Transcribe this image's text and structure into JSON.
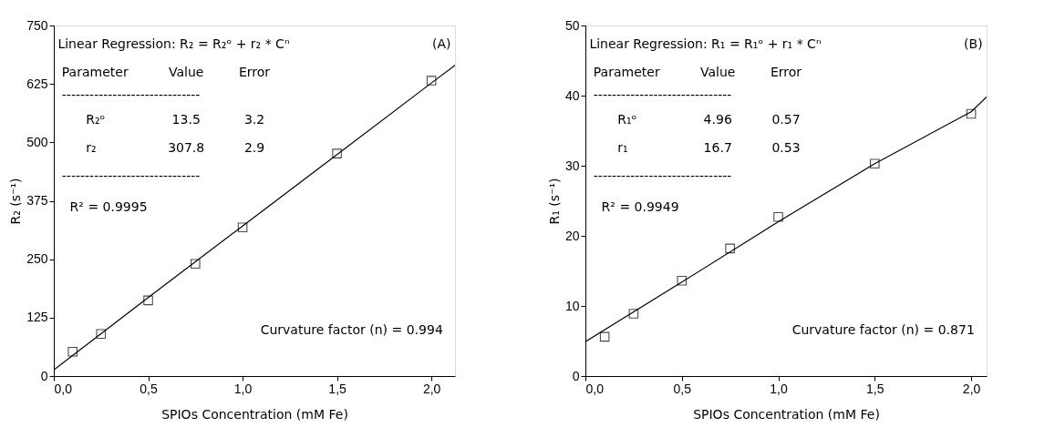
{
  "chart_data": [
    {
      "type": "scatter",
      "xlabel": "SPIOs Concentration (mM Fe)",
      "ylabel": "R₂ (s⁻¹)",
      "xlim": [
        0,
        2.125
      ],
      "xticks": [
        {
          "value": 0,
          "label": "0,0"
        },
        {
          "value": 0.5,
          "label": "0,5"
        },
        {
          "value": 1,
          "label": "1,0"
        },
        {
          "value": 1.5,
          "label": "1,5"
        },
        {
          "value": 2,
          "label": "2,0"
        }
      ],
      "ylim": [
        0,
        750
      ],
      "yticks": [
        0,
        125,
        250,
        375,
        500,
        625,
        750
      ],
      "grid": false,
      "series": [
        {
          "marker": "square",
          "color": "#000000",
          "x": [
            0.1,
            0.25,
            0.5,
            0.75,
            1.0,
            1.5,
            2.0
          ],
          "values": [
            52,
            90,
            162,
            240,
            318,
            476,
            632
          ]
        },
        {
          "type": "line",
          "marker": "none",
          "line_style": "solid",
          "color": "#000000",
          "x": [
            0,
            0.5,
            1.0,
            1.5,
            2.0,
            2.125
          ],
          "values": [
            13,
            168,
            321,
            474,
            627,
            665
          ]
        }
      ],
      "annotations": [
        "Linear Regression: R₂ = R₂ᵒ + r₂ * Cⁿ",
        "(A)",
        "Parameter",
        "Value",
        "Error",
        "------------------------------",
        "R₂ᵒ",
        "13.5",
        "3.2",
        "r₂",
        "307.8",
        "2.9",
        "------------------------------",
        "R² = 0.9995",
        "Curvature factor (n) = 0.994"
      ]
    },
    {
      "type": "scatter",
      "xlabel": "SPIOs Concentration (mM Fe)",
      "ylabel": "R₁ (s⁻¹)",
      "xlim": [
        0,
        2.08
      ],
      "xticks": [
        {
          "value": 0,
          "label": "0,0"
        },
        {
          "value": 0.5,
          "label": "0,5"
        },
        {
          "value": 1,
          "label": "1,0"
        },
        {
          "value": 1.5,
          "label": "1,5"
        },
        {
          "value": 2,
          "label": "2,0"
        }
      ],
      "ylim": [
        0,
        50
      ],
      "yticks": [
        0,
        10,
        20,
        30,
        40,
        50
      ],
      "grid": false,
      "series": [
        {
          "marker": "square",
          "color": "#000000",
          "x": [
            0.1,
            0.25,
            0.5,
            0.75,
            1.0,
            1.5,
            2.0
          ],
          "values": [
            5.6,
            8.9,
            13.6,
            18.2,
            22.7,
            30.3,
            37.4
          ]
        },
        {
          "type": "line",
          "marker": "none",
          "line_style": "solid",
          "color": "#000000",
          "x": [
            0,
            0.5,
            1.0,
            1.5,
            2.0,
            2.08
          ],
          "values": [
            4.9,
            13.4,
            22.0,
            30.3,
            37.7,
            39.8
          ]
        }
      ],
      "annotations": [
        "Linear Regression: R₁ = R₁ᵒ + r₁ * Cⁿ",
        "(B)",
        "Parameter",
        "Value",
        "Error",
        "------------------------------",
        "R₁ᵒ",
        "4.96",
        "0.57",
        "r₁",
        "16.7",
        "0.53",
        "------------------------------",
        "R² = 0.9949",
        "Curvature factor (n) = 0.871"
      ]
    }
  ]
}
